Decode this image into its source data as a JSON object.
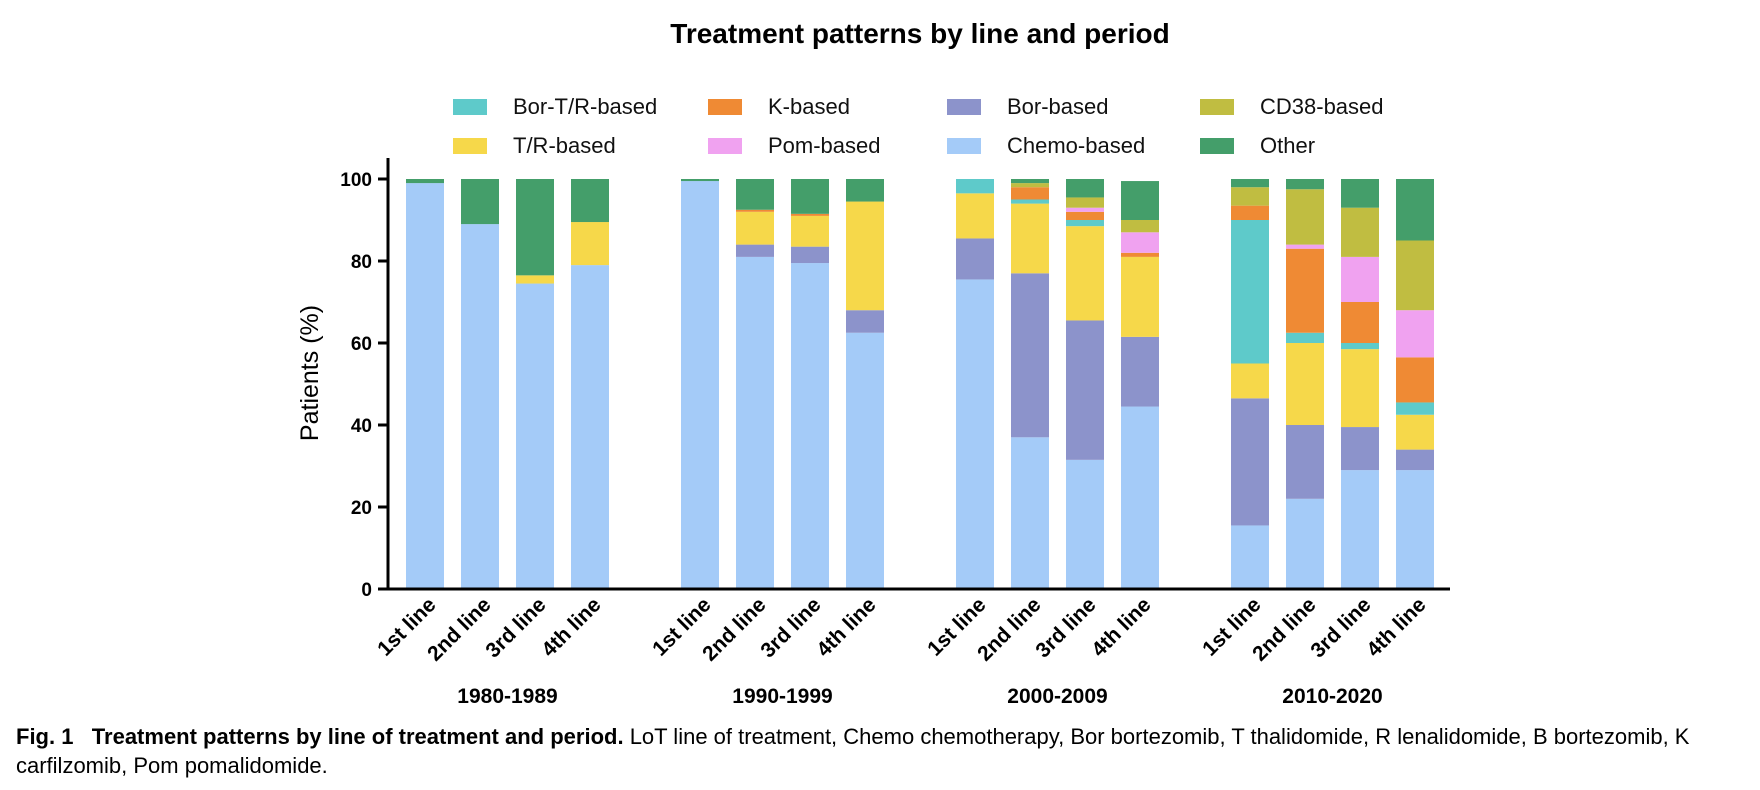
{
  "chart_data": {
    "type": "bar",
    "stacked": true,
    "title": "Treatment patterns by line and period",
    "ylabel": "Patients (%)",
    "ylim": [
      0,
      100
    ],
    "yticks": [
      0,
      20,
      40,
      60,
      80,
      100
    ],
    "legend_position": "top",
    "groups": [
      {
        "name": "1980-1989",
        "categories": [
          "1st line",
          "2nd line",
          "3rd line",
          "4th line"
        ]
      },
      {
        "name": "1990-1999",
        "categories": [
          "1st line",
          "2nd line",
          "3rd line",
          "4th line"
        ]
      },
      {
        "name": "2000-2009",
        "categories": [
          "1st line",
          "2nd line",
          "3rd line",
          "4th line"
        ]
      },
      {
        "name": "2010-2020",
        "categories": [
          "1st line",
          "2nd line",
          "3rd line",
          "4th line"
        ]
      }
    ],
    "series": [
      {
        "name": "Chemo-based",
        "color": "#a4cbf8",
        "values": [
          99,
          89,
          74.5,
          79,
          99.5,
          81,
          79.5,
          62.5,
          75.5,
          37,
          31.5,
          44.5,
          15.5,
          22,
          29,
          29
        ]
      },
      {
        "name": "Bor-based",
        "color": "#8c93cb",
        "values": [
          0,
          0,
          0,
          0,
          0,
          3,
          4,
          5.5,
          10,
          40,
          34,
          17,
          31,
          18,
          10.5,
          5
        ]
      },
      {
        "name": "T/R-based",
        "color": "#f6d84a",
        "values": [
          0,
          0,
          2,
          10.5,
          0,
          8,
          7.5,
          26.5,
          11,
          17,
          23,
          19.5,
          8.5,
          20,
          19,
          8.5
        ]
      },
      {
        "name": "Bor-T/R-based",
        "color": "#5ecaca",
        "values": [
          0,
          0,
          0,
          0,
          0,
          0,
          0,
          0,
          3.5,
          1,
          1.5,
          0,
          35,
          2.5,
          1.5,
          3
        ]
      },
      {
        "name": "K-based",
        "color": "#ef8a34",
        "values": [
          0,
          0,
          0,
          0,
          0,
          0.5,
          0.5,
          0,
          0,
          3,
          2,
          1,
          3.5,
          20.5,
          10,
          11
        ]
      },
      {
        "name": "Pom-based",
        "color": "#f0a2f0",
        "values": [
          0,
          0,
          0,
          0,
          0,
          0,
          0,
          0,
          0,
          0,
          1,
          5,
          0,
          1,
          11,
          11.5
        ]
      },
      {
        "name": "CD38-based",
        "color": "#c0bd41",
        "values": [
          0,
          0,
          0,
          0,
          0,
          0,
          0,
          0,
          0,
          1,
          2.5,
          3,
          4.5,
          13.5,
          12,
          17
        ]
      },
      {
        "name": "Other",
        "color": "#449e6a",
        "values": [
          1,
          11,
          23.5,
          10.5,
          0.5,
          7.5,
          8.5,
          5.5,
          0,
          1,
          4.5,
          9.5,
          2,
          2.5,
          7,
          15
        ]
      }
    ],
    "legend_order": [
      "Bor-T/R-based",
      "K-based",
      "Bor-based",
      "CD38-based",
      "T/R-based",
      "Pom-based",
      "Chemo-based",
      "Other"
    ]
  },
  "caption": {
    "label": "Fig. 1",
    "bold_title": "Treatment patterns by line of treatment and period.",
    "text": "LoT line of treatment, Chemo chemotherapy, Bor bortezomib, T thalidomide, R lenalidomide, B bortezomib, K carfilzomib, Pom pomalidomide."
  }
}
